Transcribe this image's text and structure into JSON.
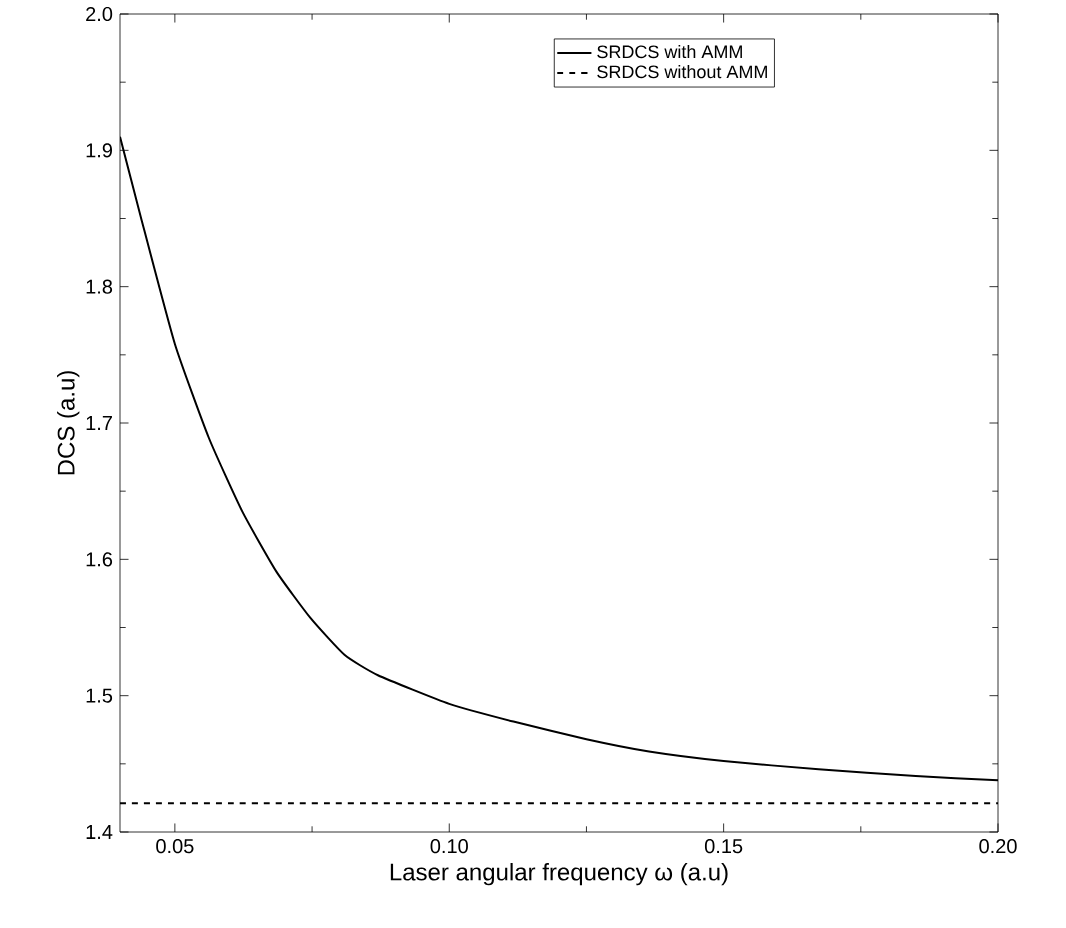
{
  "chart_data": {
    "type": "line",
    "xlabel": "Laser angular frequency ω (a.u)",
    "ylabel": "DCS (a.u)",
    "xlim": [
      0.04,
      0.2
    ],
    "ylim": [
      1.4,
      2.0
    ],
    "xticks": [
      {
        "value": 0.05,
        "label": "0.05"
      },
      {
        "value": 0.1,
        "label": "0.10"
      },
      {
        "value": 0.15,
        "label": "0.15"
      },
      {
        "value": 0.2,
        "label": "0.20"
      }
    ],
    "yticks": [
      {
        "value": 1.4,
        "label": "1.4"
      },
      {
        "value": 1.5,
        "label": "1.5"
      },
      {
        "value": 1.6,
        "label": "1.6"
      },
      {
        "value": 1.7,
        "label": "1.7"
      },
      {
        "value": 1.8,
        "label": "1.8"
      },
      {
        "value": 1.9,
        "label": "1.9"
      },
      {
        "value": 2.0,
        "label": "2.0"
      }
    ],
    "grid": false,
    "legend": "top",
    "series": [
      {
        "name": "SRDCS with AMM",
        "color": "#000000",
        "line_style": "solid",
        "x": [
          0.04,
          0.0438,
          0.05,
          0.0562,
          0.0623,
          0.0685,
          0.0747,
          0.0809,
          0.087,
          0.1,
          0.1117,
          0.125,
          0.1364,
          0.15,
          0.1673,
          0.185,
          0.2
        ],
        "values": [
          1.91,
          1.851,
          1.758,
          1.689,
          1.635,
          1.591,
          1.557,
          1.53,
          1.515,
          1.494,
          1.481,
          1.468,
          1.459,
          1.452,
          1.446,
          1.441,
          1.438
        ]
      },
      {
        "name": "SRDCS without AMM",
        "color": "#000000",
        "line_style": "dashed",
        "x": [
          0.04,
          0.2
        ],
        "values": [
          1.421,
          1.421
        ]
      }
    ]
  }
}
